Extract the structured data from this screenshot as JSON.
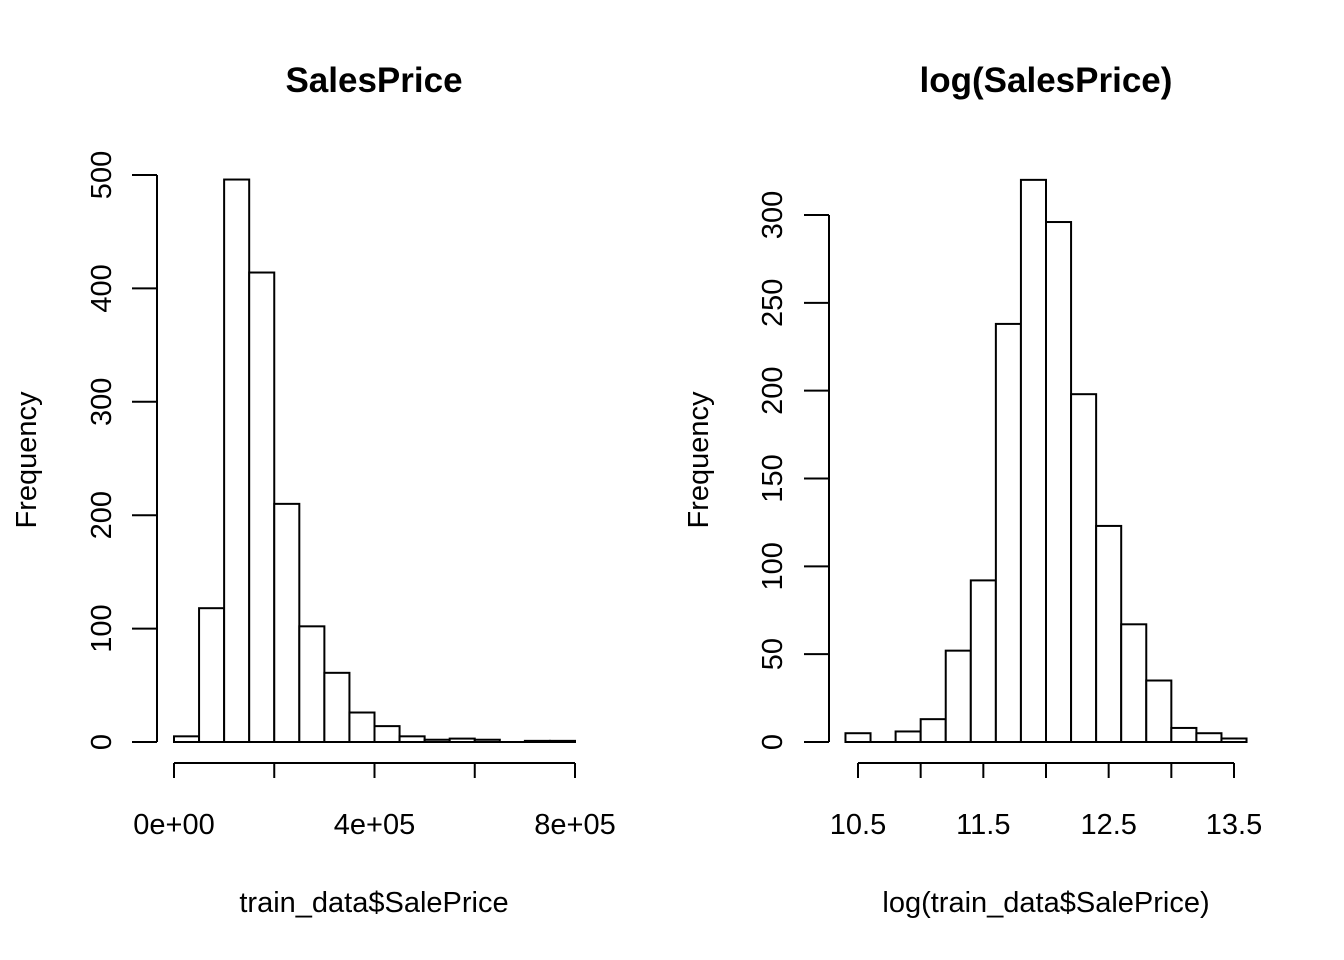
{
  "chart_data": [
    {
      "type": "bar",
      "title": "SalesPrice",
      "xlabel": "train_data$SalePrice",
      "ylabel": "Frequency",
      "x_ticks": [
        0,
        400000,
        800000
      ],
      "x_tick_labels": [
        "0e+00",
        "4e+05",
        "8e+05"
      ],
      "y_ticks": [
        0,
        100,
        200,
        300,
        400,
        500
      ],
      "y_tick_labels": [
        "0",
        "100",
        "200",
        "300",
        "400",
        "500"
      ],
      "xlim": [
        0,
        800000
      ],
      "ylim": [
        0,
        500
      ],
      "bin_width": 50000,
      "bin_starts": [
        0,
        50000,
        100000,
        150000,
        200000,
        250000,
        300000,
        350000,
        400000,
        450000,
        500000,
        550000,
        600000,
        650000,
        700000,
        750000
      ],
      "values": [
        5,
        118,
        496,
        414,
        210,
        102,
        61,
        26,
        14,
        5,
        2,
        3,
        2,
        0,
        1,
        1
      ]
    },
    {
      "type": "bar",
      "title": "log(SalesPrice)",
      "xlabel": "log(train_data$SalePrice)",
      "ylabel": "Frequency",
      "x_ticks": [
        10.5,
        11.5,
        12.5,
        13.5
      ],
      "x_tick_labels": [
        "10.5",
        "11.5",
        "12.5",
        "13.5"
      ],
      "y_ticks": [
        0,
        50,
        100,
        150,
        200,
        250,
        300
      ],
      "y_tick_labels": [
        "0",
        "50",
        "100",
        "150",
        "200",
        "250",
        "300"
      ],
      "xlim": [
        10.5,
        13.5
      ],
      "ylim": [
        0,
        320
      ],
      "bin_width": 0.2,
      "bin_starts": [
        10.4,
        10.6,
        10.8,
        11.0,
        11.2,
        11.4,
        11.6,
        11.8,
        12.0,
        12.2,
        12.4,
        12.6,
        12.8,
        13.0,
        13.2,
        13.4
      ],
      "values": [
        5,
        0,
        6,
        13,
        52,
        92,
        238,
        320,
        296,
        198,
        123,
        67,
        35,
        8,
        5,
        2
      ]
    }
  ]
}
